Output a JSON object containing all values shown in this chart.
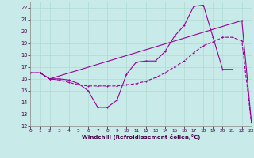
{
  "xlabel": "Windchill (Refroidissement éolien,°C)",
  "bg_color": "#c8eae8",
  "line_color": "#990099",
  "xlim": [
    0,
    23
  ],
  "ylim": [
    12,
    22.5
  ],
  "ytick_min": 12,
  "ytick_max": 22,
  "xticks": [
    0,
    1,
    2,
    3,
    4,
    5,
    6,
    7,
    8,
    9,
    10,
    11,
    12,
    13,
    14,
    15,
    16,
    17,
    18,
    19,
    20,
    21,
    22,
    23
  ],
  "yticks": [
    12,
    13,
    14,
    15,
    16,
    17,
    18,
    19,
    20,
    21,
    22
  ],
  "line1_x": [
    0,
    1,
    2,
    3,
    4,
    5,
    6,
    7,
    8,
    9,
    10,
    11,
    12,
    13,
    14,
    15,
    16,
    17,
    18,
    19,
    20,
    21
  ],
  "line1_y": [
    16.5,
    16.5,
    16.0,
    16.0,
    15.9,
    15.6,
    15.0,
    13.6,
    13.6,
    14.2,
    16.4,
    17.4,
    17.5,
    17.5,
    18.3,
    19.6,
    20.5,
    22.1,
    22.2,
    19.5,
    16.8,
    16.8
  ],
  "line2_x": [
    0,
    1,
    2,
    3,
    4,
    5,
    6,
    7,
    8,
    9,
    10,
    11,
    12,
    13,
    14,
    15,
    16,
    17,
    18,
    19,
    20,
    21,
    22,
    23
  ],
  "line2_y": [
    16.5,
    16.5,
    16.0,
    15.9,
    15.7,
    15.5,
    15.4,
    15.4,
    15.4,
    15.4,
    15.5,
    15.6,
    15.8,
    16.1,
    16.5,
    17.0,
    17.5,
    18.2,
    18.8,
    19.1,
    19.5,
    19.5,
    19.2,
    12.3
  ],
  "line3_x": [
    0,
    1,
    2,
    22,
    23
  ],
  "line3_y": [
    16.5,
    16.5,
    16.0,
    20.9,
    12.3
  ]
}
